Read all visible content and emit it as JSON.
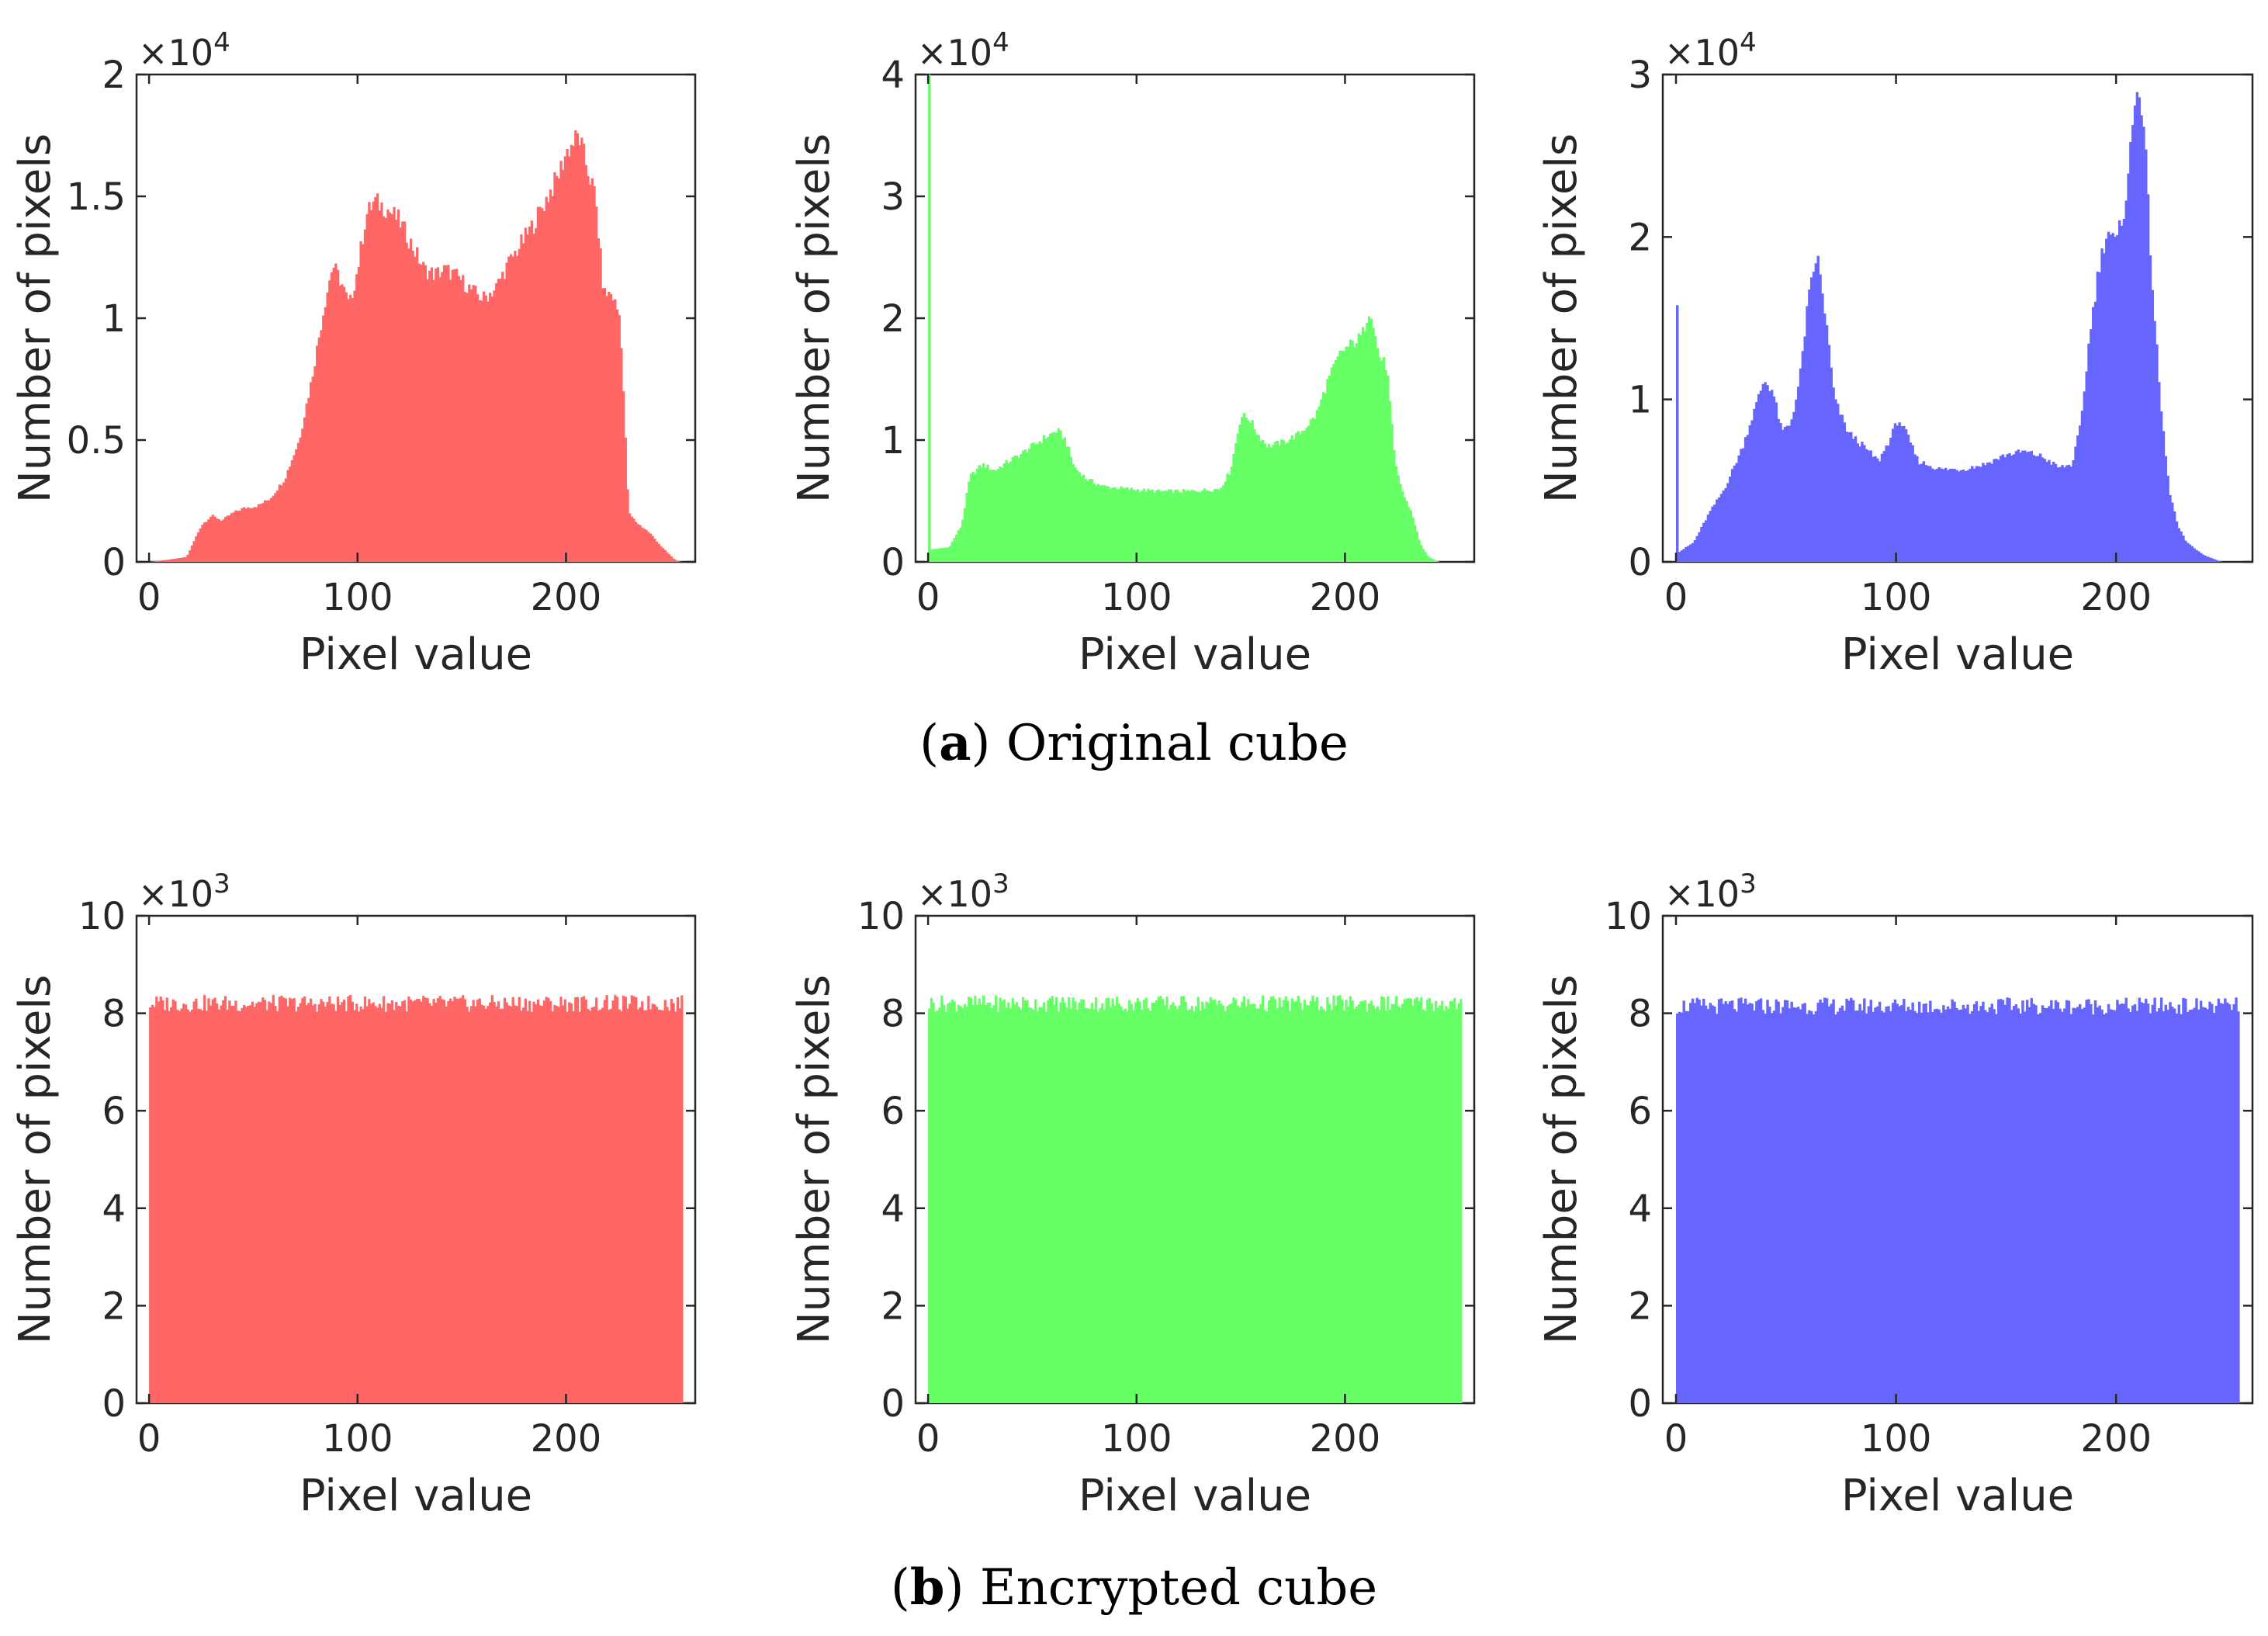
{
  "figure": {
    "captions": [
      {
        "letter": "a",
        "text": "Original cube"
      },
      {
        "letter": "b",
        "text": "Encrypted cube"
      }
    ]
  },
  "chart_data": [
    {
      "type": "bar",
      "panel": "a-red",
      "color": "#ff6666",
      "xlabel": "Pixel value",
      "ylabel": "Number of pixels",
      "xlim": [
        -6,
        262
      ],
      "ylim": [
        0,
        2
      ],
      "exponent": "×10^4",
      "xticks": [
        0,
        100,
        200
      ],
      "yticks": [
        0,
        0.5,
        1,
        1.5,
        2
      ],
      "ytick_labels": [
        "0",
        "0.5",
        "1",
        "1.5",
        "2"
      ],
      "profile": [
        [
          0,
          0
        ],
        [
          10,
          0.01
        ],
        [
          18,
          0.02
        ],
        [
          25,
          0.15
        ],
        [
          30,
          0.19
        ],
        [
          35,
          0.17
        ],
        [
          40,
          0.2
        ],
        [
          45,
          0.22
        ],
        [
          52,
          0.23
        ],
        [
          58,
          0.26
        ],
        [
          65,
          0.34
        ],
        [
          72,
          0.5
        ],
        [
          78,
          0.75
        ],
        [
          84,
          1.05
        ],
        [
          88,
          1.22
        ],
        [
          92,
          1.15
        ],
        [
          96,
          1.05
        ],
        [
          100,
          1.2
        ],
        [
          104,
          1.42
        ],
        [
          108,
          1.48
        ],
        [
          114,
          1.45
        ],
        [
          120,
          1.4
        ],
        [
          126,
          1.3
        ],
        [
          132,
          1.2
        ],
        [
          137,
          1.18
        ],
        [
          142,
          1.2
        ],
        [
          148,
          1.17
        ],
        [
          154,
          1.12
        ],
        [
          160,
          1.08
        ],
        [
          166,
          1.12
        ],
        [
          172,
          1.22
        ],
        [
          178,
          1.3
        ],
        [
          184,
          1.38
        ],
        [
          190,
          1.48
        ],
        [
          196,
          1.58
        ],
        [
          200,
          1.68
        ],
        [
          206,
          1.75
        ],
        [
          210,
          1.62
        ],
        [
          214,
          1.5
        ],
        [
          218,
          1.1
        ],
        [
          222,
          1.1
        ],
        [
          226,
          1.0
        ],
        [
          230,
          0.2
        ],
        [
          234,
          0.16
        ],
        [
          240,
          0.12
        ],
        [
          246,
          0.06
        ],
        [
          252,
          0.01
        ],
        [
          255,
          0
        ]
      ]
    },
    {
      "type": "bar",
      "panel": "a-green",
      "color": "#66ff66",
      "xlabel": "Pixel value",
      "ylabel": "Number of pixels",
      "xlim": [
        -6,
        262
      ],
      "ylim": [
        0,
        4
      ],
      "exponent": "×10^4",
      "xticks": [
        0,
        100,
        200
      ],
      "yticks": [
        0,
        1,
        2,
        3,
        4
      ],
      "ytick_labels": [
        "0",
        "1",
        "2",
        "3",
        "4"
      ],
      "spike": {
        "x": 0,
        "value": 4.0
      },
      "profile": [
        [
          0,
          0.1
        ],
        [
          10,
          0.12
        ],
        [
          16,
          0.3
        ],
        [
          20,
          0.7
        ],
        [
          26,
          0.8
        ],
        [
          32,
          0.75
        ],
        [
          38,
          0.82
        ],
        [
          44,
          0.88
        ],
        [
          50,
          0.95
        ],
        [
          56,
          1.02
        ],
        [
          62,
          1.08
        ],
        [
          66,
          1.0
        ],
        [
          70,
          0.78
        ],
        [
          76,
          0.68
        ],
        [
          84,
          0.62
        ],
        [
          95,
          0.6
        ],
        [
          110,
          0.58
        ],
        [
          125,
          0.58
        ],
        [
          140,
          0.6
        ],
        [
          145,
          0.75
        ],
        [
          150,
          1.2
        ],
        [
          154,
          1.18
        ],
        [
          158,
          1.05
        ],
        [
          163,
          0.95
        ],
        [
          170,
          0.98
        ],
        [
          178,
          1.05
        ],
        [
          186,
          1.2
        ],
        [
          192,
          1.5
        ],
        [
          198,
          1.72
        ],
        [
          204,
          1.8
        ],
        [
          208,
          1.85
        ],
        [
          212,
          2.1
        ],
        [
          216,
          1.7
        ],
        [
          220,
          1.6
        ],
        [
          224,
          0.8
        ],
        [
          228,
          0.55
        ],
        [
          232,
          0.4
        ],
        [
          236,
          0.15
        ],
        [
          240,
          0.04
        ],
        [
          245,
          0
        ]
      ]
    },
    {
      "type": "bar",
      "panel": "a-blue",
      "color": "#6666ff",
      "xlabel": "Pixel value",
      "ylabel": "Number of pixels",
      "xlim": [
        -6,
        262
      ],
      "ylim": [
        0,
        3
      ],
      "exponent": "×10^4",
      "xticks": [
        0,
        100,
        200
      ],
      "yticks": [
        0,
        1,
        2,
        3
      ],
      "ytick_labels": [
        "0",
        "1",
        "2",
        "3"
      ],
      "spike": {
        "x": 0,
        "value": 1.58
      },
      "profile": [
        [
          0,
          0.05
        ],
        [
          8,
          0.12
        ],
        [
          15,
          0.3
        ],
        [
          22,
          0.45
        ],
        [
          30,
          0.7
        ],
        [
          36,
          0.95
        ],
        [
          40,
          1.12
        ],
        [
          44,
          1.05
        ],
        [
          48,
          0.8
        ],
        [
          52,
          0.85
        ],
        [
          56,
          1.1
        ],
        [
          60,
          1.6
        ],
        [
          64,
          1.9
        ],
        [
          68,
          1.5
        ],
        [
          72,
          1.0
        ],
        [
          78,
          0.8
        ],
        [
          86,
          0.7
        ],
        [
          92,
          0.62
        ],
        [
          97,
          0.75
        ],
        [
          101,
          0.88
        ],
        [
          105,
          0.78
        ],
        [
          110,
          0.62
        ],
        [
          120,
          0.57
        ],
        [
          130,
          0.57
        ],
        [
          140,
          0.6
        ],
        [
          150,
          0.66
        ],
        [
          158,
          0.68
        ],
        [
          166,
          0.65
        ],
        [
          174,
          0.58
        ],
        [
          180,
          0.6
        ],
        [
          184,
          0.85
        ],
        [
          188,
          1.4
        ],
        [
          192,
          1.8
        ],
        [
          196,
          2.05
        ],
        [
          200,
          1.95
        ],
        [
          204,
          2.2
        ],
        [
          207,
          2.6
        ],
        [
          210,
          3.0
        ],
        [
          213,
          2.6
        ],
        [
          216,
          1.8
        ],
        [
          220,
          1.0
        ],
        [
          224,
          0.45
        ],
        [
          228,
          0.22
        ],
        [
          232,
          0.12
        ],
        [
          240,
          0.04
        ],
        [
          248,
          0
        ]
      ]
    },
    {
      "type": "bar",
      "panel": "b-red",
      "color": "#ff6666",
      "xlabel": "Pixel value",
      "ylabel": "Number of pixels",
      "xlim": [
        -6,
        262
      ],
      "ylim": [
        0,
        10
      ],
      "exponent": "×10^3",
      "xticks": [
        0,
        100,
        200
      ],
      "yticks": [
        0,
        2,
        4,
        6,
        8,
        10
      ],
      "ytick_labels": [
        "0",
        "2",
        "4",
        "6",
        "8",
        "10"
      ],
      "uniform_level": 8.2
    },
    {
      "type": "bar",
      "panel": "b-green",
      "color": "#66ff66",
      "xlabel": "Pixel value",
      "ylabel": "Number of pixels",
      "xlim": [
        -6,
        262
      ],
      "ylim": [
        0,
        10
      ],
      "exponent": "×10^3",
      "xticks": [
        0,
        100,
        200
      ],
      "yticks": [
        0,
        2,
        4,
        6,
        8,
        10
      ],
      "ytick_labels": [
        "0",
        "2",
        "4",
        "6",
        "8",
        "10"
      ],
      "uniform_level": 8.2
    },
    {
      "type": "bar",
      "panel": "b-blue",
      "color": "#6666ff",
      "xlabel": "Pixel value",
      "ylabel": "Number of pixels",
      "xlim": [
        -6,
        262
      ],
      "ylim": [
        0,
        10
      ],
      "exponent": "×10^3",
      "xticks": [
        0,
        100,
        200
      ],
      "yticks": [
        0,
        2,
        4,
        6,
        8,
        10
      ],
      "ytick_labels": [
        "0",
        "2",
        "4",
        "6",
        "8",
        "10"
      ],
      "uniform_level": 8.15
    }
  ]
}
